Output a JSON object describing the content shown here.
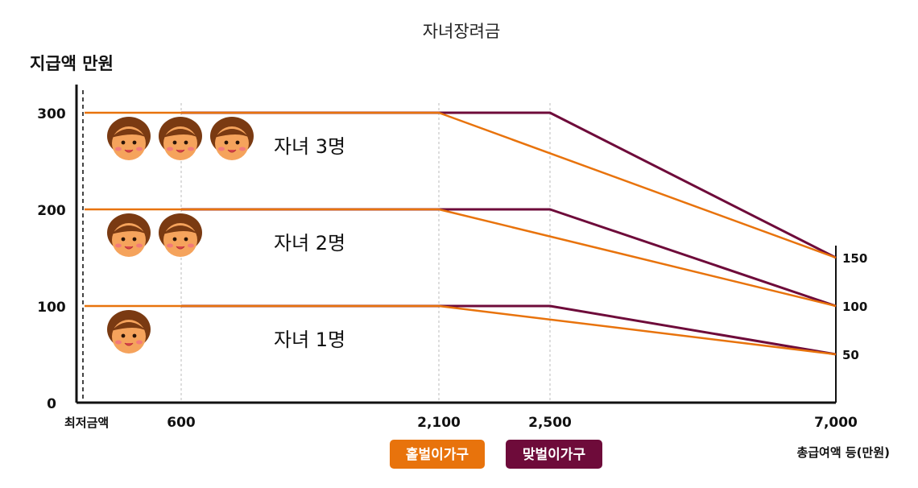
{
  "chart_data": {
    "type": "line",
    "title": "자녀장려금",
    "ylabel": "지급액 만원",
    "xlabel": "총급여액 등(만원)",
    "y_ticks": [
      "300",
      "200",
      "100",
      "0"
    ],
    "right_ticks": [
      "150",
      "100",
      "50"
    ],
    "x_ticks": [
      {
        "label": "최저금액",
        "x": 0
      },
      {
        "label": "600",
        "x": 600
      },
      {
        "label": "2,100",
        "x": 2100
      },
      {
        "label": "2,500",
        "x": 2500
      },
      {
        "label": "7,000",
        "x": 7000
      }
    ],
    "xlim": [
      0,
      7000
    ],
    "ylim": [
      0,
      340
    ],
    "groups": [
      {
        "label": "자녀 3명",
        "children": 3
      },
      {
        "label": "자녀 2명",
        "children": 2
      },
      {
        "label": "자녀 1명",
        "children": 1
      }
    ],
    "series": [
      {
        "legend_index": 0,
        "group": 0,
        "points": [
          [
            0,
            300
          ],
          [
            2100,
            300
          ],
          [
            7000,
            150
          ]
        ]
      },
      {
        "legend_index": 1,
        "group": 0,
        "points": [
          [
            600,
            300
          ],
          [
            2500,
            300
          ],
          [
            7000,
            150
          ]
        ]
      },
      {
        "legend_index": 0,
        "group": 1,
        "points": [
          [
            0,
            200
          ],
          [
            2100,
            200
          ],
          [
            7000,
            100
          ]
        ]
      },
      {
        "legend_index": 1,
        "group": 1,
        "points": [
          [
            600,
            200
          ],
          [
            2500,
            200
          ],
          [
            7000,
            100
          ]
        ]
      },
      {
        "legend_index": 0,
        "group": 2,
        "points": [
          [
            0,
            100
          ],
          [
            2100,
            100
          ],
          [
            7000,
            50
          ]
        ]
      },
      {
        "legend_index": 1,
        "group": 2,
        "points": [
          [
            600,
            100
          ],
          [
            2500,
            100
          ],
          [
            7000,
            50
          ]
        ]
      }
    ],
    "legend": [
      {
        "name": "홑벌이가구",
        "color": "#E8730C"
      },
      {
        "name": "맞벌이가구",
        "color": "#6E0B3A"
      }
    ],
    "colors": {
      "single": "#E8730C",
      "dual": "#6E0B3A",
      "face": "#F5A35C",
      "hair": "#7A3A12"
    }
  }
}
